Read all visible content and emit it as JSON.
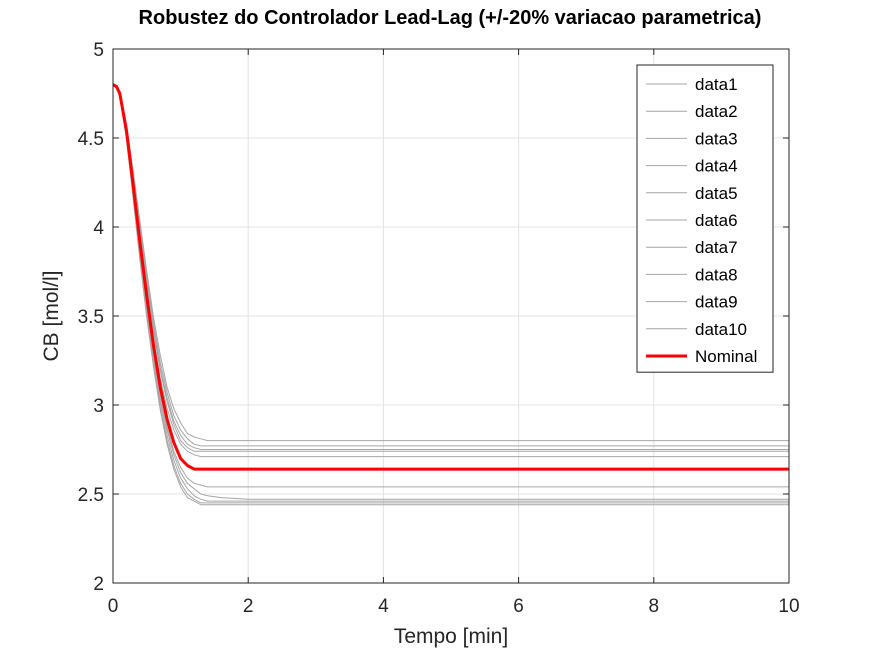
{
  "chart_data": {
    "type": "line",
    "title": "Robustez do Controlador Lead-Lag (+/-20% variacao parametrica)",
    "xlabel": "Tempo [min]",
    "ylabel": "CB [mol/l]",
    "xlim": [
      0,
      10
    ],
    "ylim": [
      2,
      5
    ],
    "xticks": [
      "0",
      "2",
      "4",
      "6",
      "8",
      "10"
    ],
    "yticks": [
      "2",
      "2.5",
      "3",
      "3.5",
      "4",
      "4.5",
      "5"
    ],
    "grid": true,
    "legend_position": "top-right",
    "colors": {
      "variation": "#a6a6a6",
      "nominal": "#ff0000",
      "axis": "#262626",
      "grid": "#e3e3e3"
    },
    "x": [
      0,
      0.05,
      0.1,
      0.2,
      0.3,
      0.4,
      0.5,
      0.6,
      0.7,
      0.8,
      0.9,
      1.0,
      1.1,
      1.2,
      1.3,
      1.4,
      1.6,
      2.0,
      10
    ],
    "series": [
      {
        "name": "data1",
        "values": [
          4.8,
          4.79,
          4.76,
          4.58,
          4.31,
          4.03,
          3.75,
          3.49,
          3.28,
          3.1,
          2.98,
          2.9,
          2.84,
          2.82,
          2.81,
          2.8,
          2.8,
          2.8,
          2.8
        ]
      },
      {
        "name": "data2",
        "values": [
          4.8,
          4.78,
          4.74,
          4.52,
          4.21,
          3.88,
          3.57,
          3.29,
          3.05,
          2.86,
          2.72,
          2.62,
          2.56,
          2.53,
          2.5,
          2.49,
          2.48,
          2.47,
          2.47
        ]
      },
      {
        "name": "data3",
        "values": [
          4.8,
          4.79,
          4.75,
          4.57,
          4.29,
          4.0,
          3.72,
          3.46,
          3.24,
          3.07,
          2.94,
          2.86,
          2.81,
          2.78,
          2.77,
          2.77,
          2.77,
          2.77,
          2.77
        ]
      },
      {
        "name": "data4",
        "values": [
          4.8,
          4.78,
          4.74,
          4.51,
          4.19,
          3.86,
          3.54,
          3.26,
          3.02,
          2.83,
          2.69,
          2.59,
          2.53,
          2.49,
          2.47,
          2.46,
          2.46,
          2.46,
          2.46
        ]
      },
      {
        "name": "data5",
        "values": [
          4.8,
          4.79,
          4.75,
          4.56,
          4.27,
          3.97,
          3.69,
          3.43,
          3.21,
          3.04,
          2.91,
          2.83,
          2.78,
          2.76,
          2.75,
          2.75,
          2.75,
          2.75,
          2.75
        ]
      },
      {
        "name": "data6",
        "values": [
          4.8,
          4.78,
          4.74,
          4.5,
          4.17,
          3.83,
          3.51,
          3.23,
          2.99,
          2.8,
          2.66,
          2.56,
          2.5,
          2.47,
          2.45,
          2.45,
          2.45,
          2.45,
          2.45
        ]
      },
      {
        "name": "data7",
        "values": [
          4.8,
          4.79,
          4.75,
          4.55,
          4.26,
          3.96,
          3.67,
          3.41,
          3.19,
          3.02,
          2.89,
          2.8,
          2.76,
          2.74,
          2.74,
          2.74,
          2.74,
          2.74,
          2.74
        ]
      },
      {
        "name": "data8",
        "values": [
          4.8,
          4.78,
          4.73,
          4.49,
          4.15,
          3.81,
          3.49,
          3.21,
          2.97,
          2.78,
          2.64,
          2.54,
          2.48,
          2.46,
          2.44,
          2.44,
          2.44,
          2.44,
          2.44
        ]
      },
      {
        "name": "data9",
        "values": [
          4.8,
          4.79,
          4.75,
          4.54,
          4.24,
          3.93,
          3.63,
          3.37,
          3.15,
          2.98,
          2.86,
          2.78,
          2.74,
          2.72,
          2.71,
          2.71,
          2.71,
          2.71,
          2.71
        ]
      },
      {
        "name": "data10",
        "values": [
          4.8,
          4.78,
          4.74,
          4.52,
          4.2,
          3.87,
          3.56,
          3.29,
          3.06,
          2.88,
          2.74,
          2.65,
          2.59,
          2.56,
          2.55,
          2.54,
          2.54,
          2.54,
          2.54
        ]
      },
      {
        "name": "Nominal",
        "values": [
          4.8,
          4.79,
          4.75,
          4.54,
          4.23,
          3.91,
          3.61,
          3.33,
          3.1,
          2.92,
          2.79,
          2.7,
          2.66,
          2.64,
          2.64,
          2.64,
          2.64,
          2.64,
          2.64
        ]
      }
    ]
  }
}
